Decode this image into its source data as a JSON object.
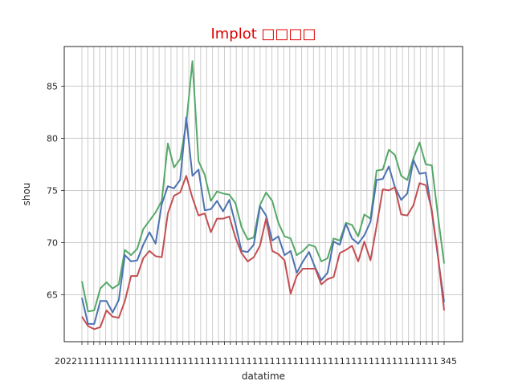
{
  "chart_data": {
    "type": "line",
    "title": "Implot □□□□",
    "title_color": "#e00000",
    "xlabel": "datatime",
    "ylabel": "shou",
    "ylim": [
      60.5,
      88.8
    ],
    "yticks": [
      65,
      70,
      75,
      80,
      85
    ],
    "grid": true,
    "x_tick_count": 62,
    "x_tick_labels_visible": "overlapping date labels (illegible), e.g. 2022... and ...345",
    "series": [
      {
        "color": "#55a868",
        "values": [
          66.3,
          63.4,
          63.5,
          65.6,
          66.2,
          65.6,
          66.0,
          69.3,
          68.8,
          69.4,
          71.3,
          72.1,
          72.9,
          74.0,
          79.5,
          77.2,
          78.0,
          81.4,
          87.4,
          77.8,
          76.5,
          74.0,
          74.9,
          74.7,
          74.6,
          73.8,
          71.5,
          70.3,
          70.5,
          73.6,
          74.8,
          74.0,
          71.9,
          70.6,
          70.4,
          68.8,
          69.2,
          69.8,
          69.6,
          68.2,
          68.5,
          70.4,
          70.2,
          71.9,
          71.7,
          70.6,
          72.7,
          72.3,
          76.9,
          77.0,
          78.9,
          78.4,
          76.4,
          76.0,
          78.1,
          79.6,
          77.5,
          77.4,
          72.5,
          68.0
        ]
      },
      {
        "color": "#4c72b0",
        "values": [
          64.7,
          62.2,
          62.2,
          64.4,
          64.4,
          63.3,
          64.5,
          68.8,
          68.2,
          68.3,
          69.8,
          71.0,
          69.9,
          73.7,
          75.4,
          75.2,
          76.0,
          82.0,
          76.4,
          77.0,
          73.1,
          73.2,
          74.0,
          73.0,
          74.1,
          71.8,
          69.2,
          69.1,
          69.8,
          73.5,
          72.6,
          70.2,
          70.6,
          68.8,
          69.2,
          67.1,
          68.2,
          69.1,
          67.6,
          66.4,
          67.1,
          70.1,
          69.8,
          71.8,
          70.4,
          69.9,
          70.7,
          72.0,
          76.0,
          76.1,
          77.3,
          75.3,
          74.1,
          74.7,
          77.9,
          76.6,
          76.7,
          72.9,
          68.6,
          64.3
        ]
      },
      {
        "color": "#c44e52",
        "values": [
          62.9,
          62.0,
          61.7,
          61.9,
          63.5,
          62.9,
          62.8,
          64.4,
          66.8,
          66.8,
          68.5,
          69.2,
          68.7,
          68.6,
          72.8,
          74.5,
          74.8,
          76.4,
          74.3,
          72.6,
          72.8,
          71.0,
          72.3,
          72.3,
          72.5,
          70.5,
          69.0,
          68.2,
          68.6,
          69.7,
          72.3,
          69.2,
          68.9,
          68.3,
          65.1,
          66.8,
          67.5,
          67.5,
          67.5,
          66.0,
          66.5,
          66.7,
          69.0,
          69.3,
          69.7,
          68.2,
          70.1,
          68.3,
          71.6,
          75.1,
          75.0,
          75.3,
          72.7,
          72.6,
          73.6,
          75.7,
          75.5,
          73.1,
          68.7,
          63.5
        ]
      }
    ]
  }
}
